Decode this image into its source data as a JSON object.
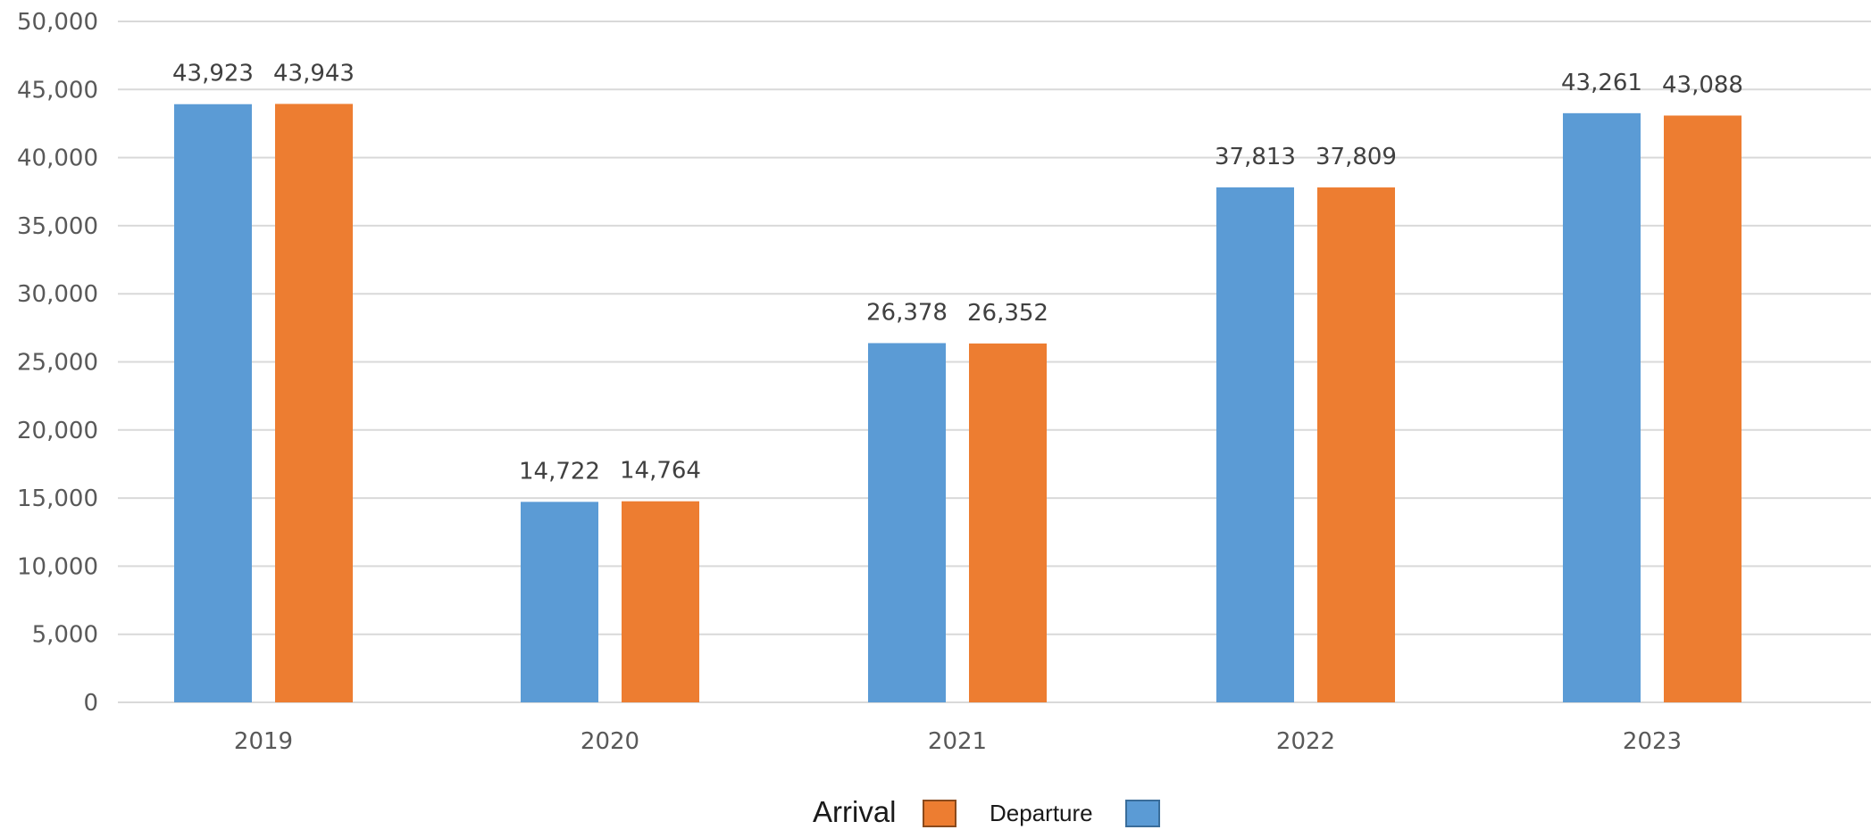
{
  "colors": {
    "arrival": "#5b9bd5",
    "departure": "#ed7d31",
    "gridline": "#d9d9d9",
    "axis_text": "#595959",
    "label_text": "#404040"
  },
  "legend": {
    "arrival_label": "Arrival",
    "departure_label": "Departure"
  },
  "chart_data": {
    "type": "bar",
    "categories": [
      "2019",
      "2020",
      "2021",
      "2022",
      "2023"
    ],
    "series": [
      {
        "name": "Arrival",
        "values": [
          43923,
          14722,
          26378,
          37813,
          43261
        ],
        "labels": [
          "43,923",
          "14,722",
          "26,378",
          "37,813",
          "43,261"
        ]
      },
      {
        "name": "Departure",
        "values": [
          43943,
          14764,
          26352,
          37809,
          43088
        ],
        "labels": [
          "43,943",
          "14,764",
          "26,352",
          "37,809",
          "43,088"
        ]
      }
    ],
    "title": "",
    "xlabel": "",
    "ylabel": "",
    "ylim": [
      0,
      50000
    ],
    "yticks": [
      {
        "value": 0,
        "label": "0"
      },
      {
        "value": 5000,
        "label": "5,000"
      },
      {
        "value": 10000,
        "label": "10,000"
      },
      {
        "value": 15000,
        "label": "15,000"
      },
      {
        "value": 20000,
        "label": "20,000"
      },
      {
        "value": 25000,
        "label": "25,000"
      },
      {
        "value": 30000,
        "label": "30,000"
      },
      {
        "value": 35000,
        "label": "35,000"
      },
      {
        "value": 40000,
        "label": "40,000"
      },
      {
        "value": 45000,
        "label": "45,000"
      },
      {
        "value": 50000,
        "label": "50,000"
      }
    ],
    "grid": true,
    "legend_position": "bottom"
  }
}
